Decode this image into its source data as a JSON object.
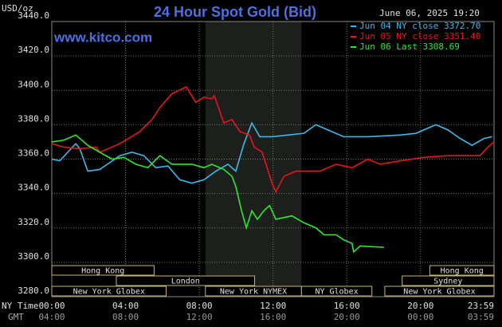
{
  "chart_data": {
    "type": "line",
    "title": "24 Hour Spot Gold (Bid)",
    "site": "www.kitco.com",
    "timestamp": "June 06, 2025 19:20",
    "y_label": "USD/oz",
    "x_label": "NY Time",
    "x2_label": "GMT",
    "xlim": [
      0,
      23.983
    ],
    "xticks": [
      {
        "value": 0,
        "label": "00:00"
      },
      {
        "value": 4,
        "label": "04:00"
      },
      {
        "value": 8,
        "label": "08:00"
      },
      {
        "value": 12,
        "label": "12:00"
      },
      {
        "value": 16,
        "label": "16:00"
      },
      {
        "value": 20,
        "label": "20:00"
      },
      {
        "value": 23.983,
        "label": "23:59"
      }
    ],
    "gmt_labels": [
      "04:00",
      "08:00",
      "12:00",
      "16:00",
      "20:00",
      "00:00",
      "03:59"
    ],
    "ylim": [
      3280,
      3440
    ],
    "yticks": [
      {
        "value": 3440,
        "label": "3440.0"
      },
      {
        "value": 3420,
        "label": "3420.0"
      },
      {
        "value": 3400,
        "label": "3400.0"
      },
      {
        "value": 3380,
        "label": "3380.0"
      },
      {
        "value": 3360,
        "label": "3360.0"
      },
      {
        "value": 3340,
        "label": "3340.0"
      },
      {
        "value": 3320,
        "label": "3320.0"
      },
      {
        "value": 3300,
        "label": "3300.0"
      },
      {
        "value": 3280,
        "label": "3280.0"
      }
    ],
    "grid": true,
    "shaded_range": [
      8.33,
      13.54
    ],
    "sessions": [
      [
        {
          "name": "Hong Kong",
          "start": 0,
          "end": 5.55
        },
        {
          "name": "Hong Kong",
          "start": 20.5,
          "end": 23.983
        }
      ],
      [
        {
          "name": "London",
          "start": 3.5,
          "end": 11
        },
        {
          "name": "Sydney",
          "start": 19.0,
          "end": 23.983
        }
      ],
      [
        {
          "name": "New York Globex",
          "start": 0,
          "end": 6.2
        },
        {
          "name": "New York NYMEX",
          "start": 8.33,
          "end": 13.54
        },
        {
          "name": "NY Globex",
          "start": 13.54,
          "end": 17.36
        },
        {
          "name": "New York Globex",
          "start": 18.06,
          "end": 23.983
        }
      ]
    ],
    "series": [
      {
        "name": "Jun 04 NY close 3372.70",
        "color": "#3fb8e8",
        "x": [
          0,
          0.43,
          1.3,
          1.52,
          1.95,
          2.6,
          3.69,
          4.34,
          4.99,
          5.64,
          6.3,
          6.94,
          7.6,
          8.25,
          8.9,
          9.55,
          9.98,
          10.42,
          10.85,
          11.28,
          11.94,
          12.8,
          13.67,
          14.32,
          14.97,
          15.84,
          17.14,
          18.88,
          19.75,
          20.83,
          21.48,
          22.14,
          22.79,
          23.44,
          23.87
        ],
        "values": [
          3360,
          3359,
          3369,
          3366,
          3353,
          3354,
          3362,
          3364,
          3362,
          3355,
          3356,
          3348,
          3346,
          3348,
          3353,
          3357,
          3353,
          3369,
          3381,
          3373,
          3373,
          3374,
          3375,
          3380,
          3377,
          3373,
          3373,
          3374,
          3375,
          3380,
          3377,
          3372,
          3368,
          3372,
          3373
        ]
      },
      {
        "name": "Jun 05 NY close 3351.40",
        "color": "#e8141a",
        "x": [
          0,
          0.65,
          1.52,
          2.39,
          2.6,
          3.69,
          4.77,
          5.43,
          5.86,
          6.51,
          7.29,
          7.81,
          8.25,
          8.68,
          8.81,
          9.33,
          9.77,
          10.2,
          10.72,
          10.98,
          11.41,
          11.94,
          12.15,
          12.59,
          13.24,
          14.54,
          15.41,
          16.28,
          17.14,
          17.8,
          18.88,
          20.18,
          21.48,
          23.22,
          23.65,
          23.98
        ],
        "values": [
          3369,
          3367,
          3366,
          3367,
          3364,
          3369,
          3376,
          3383,
          3390,
          3398,
          3402,
          3393,
          3396,
          3395,
          3397,
          3381,
          3383,
          3376,
          3374,
          3367,
          3364,
          3346,
          3341,
          3350,
          3353,
          3353,
          3357,
          3355,
          3360,
          3357,
          3359,
          3361,
          3362,
          3362,
          3367,
          3370
        ]
      },
      {
        "name": "Jun 06 Last 3308.69",
        "color": "#2ee82e",
        "x": [
          0,
          0.65,
          1.3,
          1.95,
          2.6,
          3.26,
          3.91,
          4.56,
          5.21,
          5.86,
          6.51,
          7.6,
          8.25,
          8.68,
          9.33,
          9.77,
          9.98,
          10.29,
          10.55,
          10.85,
          11.15,
          11.5,
          11.81,
          12.15,
          13.02,
          13.67,
          14.32,
          14.76,
          15.41,
          15.84,
          16.28,
          16.37,
          16.72,
          18.01
        ],
        "values": [
          3370,
          3371,
          3374,
          3368,
          3364,
          3360,
          3361,
          3357,
          3355,
          3362,
          3357,
          3357,
          3355,
          3357,
          3354,
          3350,
          3344,
          3330,
          3320,
          3330,
          3325,
          3330,
          3333,
          3325,
          3327,
          3323,
          3320,
          3316,
          3316,
          3313,
          3311,
          3306,
          3309.5,
          3308.69
        ]
      }
    ]
  }
}
